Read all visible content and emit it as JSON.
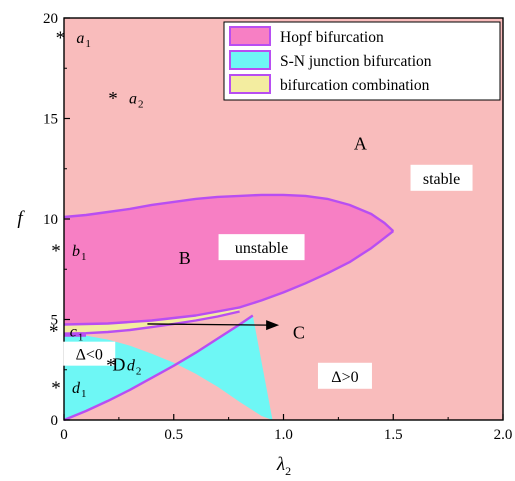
{
  "chart_data": {
    "type": "area",
    "xlabel": "λ",
    "xlabel_sub": "2",
    "ylabel": "f",
    "xlim": [
      0,
      2
    ],
    "ylim": [
      0,
      20
    ],
    "x_ticks": [
      {
        "value": 0,
        "label": "0"
      },
      {
        "value": 0.5,
        "label": "0.5"
      },
      {
        "value": 1.0,
        "label": "1.0"
      },
      {
        "value": 1.5,
        "label": "1.5"
      },
      {
        "value": 2.0,
        "label": "2.0"
      }
    ],
    "y_ticks": [
      {
        "value": 0,
        "label": "0"
      },
      {
        "value": 5,
        "label": "5"
      },
      {
        "value": 10,
        "label": "10"
      },
      {
        "value": 15,
        "label": "15"
      },
      {
        "value": 20,
        "label": "20"
      }
    ],
    "colors": {
      "stable": "#f9bcbc",
      "hopf": "#f77fc4",
      "sn": "#6ef7f5",
      "combo": "#f3eda0",
      "boundary": "#b84ef2"
    },
    "legend": {
      "position": "top-right",
      "entries": [
        {
          "key": "hopf",
          "label": "Hopf bifurcation"
        },
        {
          "key": "sn",
          "label": "S-N junction bifurcation"
        },
        {
          "key": "combo",
          "label": "bifurcation combination"
        }
      ]
    },
    "regions": {
      "hopf_upper": [
        [
          0,
          10.1
        ],
        [
          0.1,
          10.2
        ],
        [
          0.2,
          10.35
        ],
        [
          0.3,
          10.5
        ],
        [
          0.4,
          10.7
        ],
        [
          0.5,
          10.85
        ],
        [
          0.6,
          11.0
        ],
        [
          0.7,
          11.1
        ],
        [
          0.8,
          11.15
        ],
        [
          0.9,
          11.2
        ],
        [
          1.0,
          11.2
        ],
        [
          1.1,
          11.15
        ],
        [
          1.2,
          11.0
        ],
        [
          1.3,
          10.7
        ],
        [
          1.4,
          10.25
        ],
        [
          1.46,
          9.8
        ],
        [
          1.5,
          9.4
        ]
      ],
      "hopf_lower": [
        [
          0,
          4.75
        ],
        [
          0.2,
          4.8
        ],
        [
          0.4,
          4.95
        ],
        [
          0.6,
          5.2
        ],
        [
          0.8,
          5.6
        ],
        [
          0.9,
          5.95
        ],
        [
          1.0,
          6.35
        ],
        [
          1.1,
          6.8
        ],
        [
          1.2,
          7.3
        ],
        [
          1.3,
          7.85
        ],
        [
          1.4,
          8.55
        ],
        [
          1.5,
          9.4
        ]
      ],
      "combo_lower": [
        [
          0,
          4.3
        ],
        [
          0.1,
          4.32
        ],
        [
          0.2,
          4.38
        ],
        [
          0.3,
          4.48
        ],
        [
          0.4,
          4.62
        ],
        [
          0.5,
          4.78
        ],
        [
          0.6,
          4.95
        ],
        [
          0.7,
          5.15
        ],
        [
          0.8,
          5.4
        ]
      ],
      "sn_bottom": [
        [
          0,
          4.2
        ],
        [
          0.1,
          4.2
        ],
        [
          0.2,
          4.0
        ],
        [
          0.3,
          3.7
        ],
        [
          0.4,
          3.3
        ],
        [
          0.5,
          2.85
        ],
        [
          0.6,
          2.3
        ],
        [
          0.7,
          1.65
        ],
        [
          0.8,
          0.9
        ],
        [
          0.9,
          0.2
        ],
        [
          0.95,
          0.0
        ]
      ],
      "sn_hopf_bottom": [
        [
          0,
          0
        ],
        [
          0.1,
          0.45
        ],
        [
          0.2,
          0.95
        ],
        [
          0.3,
          1.5
        ],
        [
          0.4,
          2.1
        ],
        [
          0.5,
          2.7
        ],
        [
          0.6,
          3.35
        ],
        [
          0.7,
          4.05
        ],
        [
          0.8,
          4.75
        ],
        [
          0.86,
          5.2
        ]
      ]
    },
    "points": [
      {
        "label": "a",
        "sub": "1",
        "x": 0.12,
        "y": 19.1
      },
      {
        "label": "a",
        "sub": "2",
        "x": 0.36,
        "y": 16.1
      },
      {
        "label": "b",
        "sub": "1",
        "x": 0.1,
        "y": 8.5
      },
      {
        "label": "c",
        "sub": "1",
        "x": 0.09,
        "y": 4.5
      },
      {
        "label": "d",
        "sub": "1",
        "x": 0.1,
        "y": 1.7
      },
      {
        "label": "d",
        "sub": "2",
        "x": 0.35,
        "y": 2.8
      }
    ],
    "region_labels": [
      {
        "text": "A",
        "x": 1.35,
        "y": 13.8
      },
      {
        "text": "B",
        "x": 0.55,
        "y": 8.1
      },
      {
        "text": "D",
        "x": 0.25,
        "y": 2.8
      },
      {
        "text": "C",
        "x": 1.07,
        "y": 4.4
      }
    ],
    "arrow": {
      "from": [
        0.38,
        4.78
      ],
      "to": [
        0.98,
        4.72
      ]
    },
    "boxed_labels": [
      {
        "key": "stable",
        "text": "stable",
        "x": 1.72,
        "y": 12.05
      },
      {
        "key": "unstable",
        "text": "unstable",
        "x": 0.9,
        "y": 8.6
      },
      {
        "key": "delta_neg",
        "text": "Δ<0",
        "x": 0.115,
        "y": 3.3
      },
      {
        "key": "delta_pos",
        "text": "Δ>0",
        "x": 1.28,
        "y": 2.2
      }
    ]
  }
}
